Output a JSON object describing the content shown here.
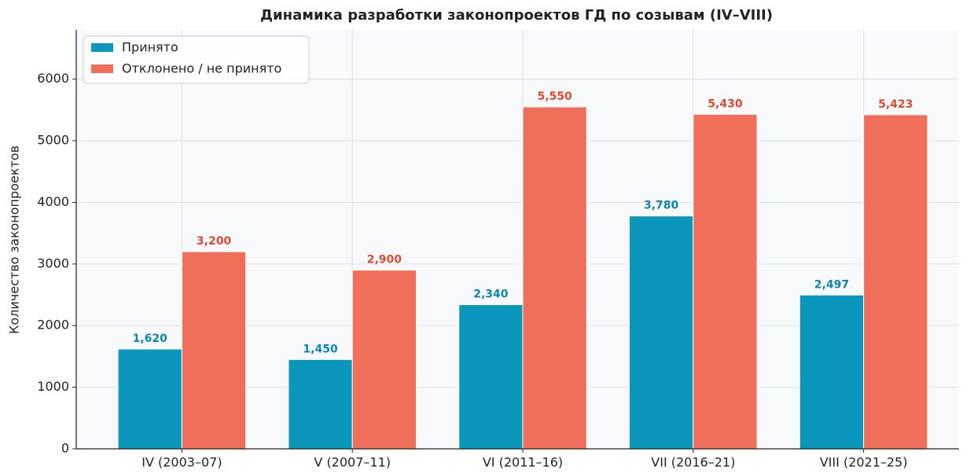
{
  "chart_data": {
    "type": "bar",
    "title": "Динамика разработки законопроектов ГД по созывам (IV–VIII)",
    "y_label": "Количество законопроектов",
    "categories": [
      "IV (2003–07)",
      "V (2007–11)",
      "VI (2011–16)",
      "VII (2016–21)",
      "VIII (2021–25)"
    ],
    "series": [
      {
        "name": "Принято",
        "color": "#0a97bb",
        "label_color": "#0a87aa",
        "values": [
          1620,
          1450,
          2340,
          3780,
          2497
        ],
        "value_labels": [
          "1,620",
          "1,450",
          "2,340",
          "3,780",
          "2,497"
        ]
      },
      {
        "name": "Отклонено / не принято",
        "color": "#ef6f5a",
        "label_color": "#e0492f",
        "values": [
          3200,
          2900,
          5550,
          5430,
          5423
        ],
        "value_labels": [
          "3,200",
          "2,900",
          "5,550",
          "5,430",
          "5,423"
        ]
      }
    ],
    "ylim": [
      0,
      6800
    ],
    "yticks": [
      0,
      1000,
      2000,
      3000,
      4000,
      5000,
      6000
    ],
    "grid": true,
    "legend": "upper left"
  }
}
